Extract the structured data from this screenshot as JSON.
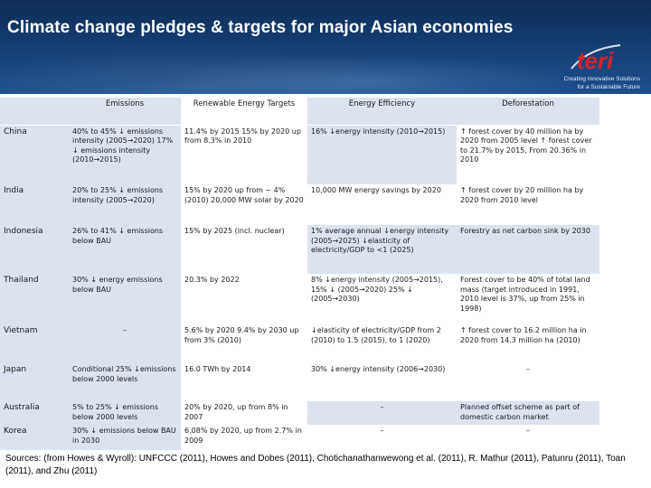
{
  "header": {
    "title": "Climate change pledges & targets for major Asian economies",
    "logo": {
      "wordmark": "teri",
      "tagline_line1": "Creating Innovative Solutions",
      "tagline_line2": "for a Sustainable Future"
    }
  },
  "table": {
    "columns": [
      "",
      "Emissions",
      "Renewable Energy Targets",
      "Energy Efficiency",
      "Deforestation"
    ],
    "rows": [
      {
        "country": "China",
        "emissions": "40% to 45% ↓ emissions intensity (2005→2020) 17% ↓ emissions intensity (2010→2015)",
        "renewable": "11.4% by 2015 15% by 2020 up from 8.3% in 2010",
        "efficiency": "16% ↓energy intensity (2010→2015)",
        "deforestation": "↑ forest cover by 40 million ha by 2020 from 2005 level ↑ forest cover to 21.7% by 2015, From 20.36% in 2010"
      },
      {
        "country": "India",
        "emissions": "20% to 25% ↓ emissions intensity (2005→2020)",
        "renewable": "15% by 2020 up from ~ 4% (2010) 20,000 MW solar by 2020",
        "efficiency": "10,000 MW energy savings by 2020",
        "deforestation": "↑ forest cover by 20 million ha by 2020 from 2010 level"
      },
      {
        "country": "Indonesia",
        "emissions": "26% to 41% ↓ emissions below BAU",
        "renewable": "15% by 2025 (incl. nuclear)",
        "efficiency": "1% average annual ↓energy intensity (2005→2025) ↓elasticity of electricity/GDP to <1 (2025)",
        "deforestation": "Forestry as net carbon sink by 2030"
      },
      {
        "country": "Thailand",
        "emissions": "30% ↓ energy emissions below BAU",
        "renewable": "20.3% by 2022",
        "efficiency": "8% ↓energy intensity (2005→2015), 15% ↓ (2005→2020) 25% ↓ (2005→2030)",
        "deforestation": "Forest cover to be 40% of total land mass (target introduced in 1991, 2010 level is 37%, up from 25% in 1998)"
      },
      {
        "country": "Vietnam",
        "emissions": "–",
        "renewable": "5.6% by 2020 9.4% by 2030 up from 3% (2010)",
        "efficiency": "↓elasticity of electricity/GDP from 2 (2010) to 1.5 (2015), to 1 (2020)",
        "deforestation": "↑ forest cover to 16.2 million ha in 2020 from 14.3 million ha (2010)"
      },
      {
        "country": "Japan",
        "emissions": "Conditional 25% ↓emissions below 2000 levels",
        "renewable": "16.0 TWh by 2014",
        "efficiency": "30% ↓energy intensity (2006→2030)",
        "deforestation": "–"
      },
      {
        "country": "Australia",
        "emissions": "5% to 25% ↓ emissions below 2000 levels",
        "renewable": "20% by 2020, up from 8% in 2007",
        "efficiency": "–",
        "deforestation": "Planned offset scheme as part of domestic carbon market"
      },
      {
        "country": "Korea",
        "emissions": "30% ↓ emissions below BAU in 2030",
        "renewable": "6.08% by 2020, up from 2.7% in 2009",
        "efficiency": "–",
        "deforestation": "–"
      }
    ]
  },
  "footer": {
    "sources": "Sources: (from Howes & Wyroll): UNFCCC (2011), Howes and Dobes (2011), Chotichanathanwewong et al. (2011), R. Mathur (2011), Patunru (2011), Toan (2011), and Zhu (2011)"
  },
  "colors": {
    "banner": "#133d72",
    "row_shade": "#dbe3ef",
    "logo_red": "#d2232a"
  }
}
